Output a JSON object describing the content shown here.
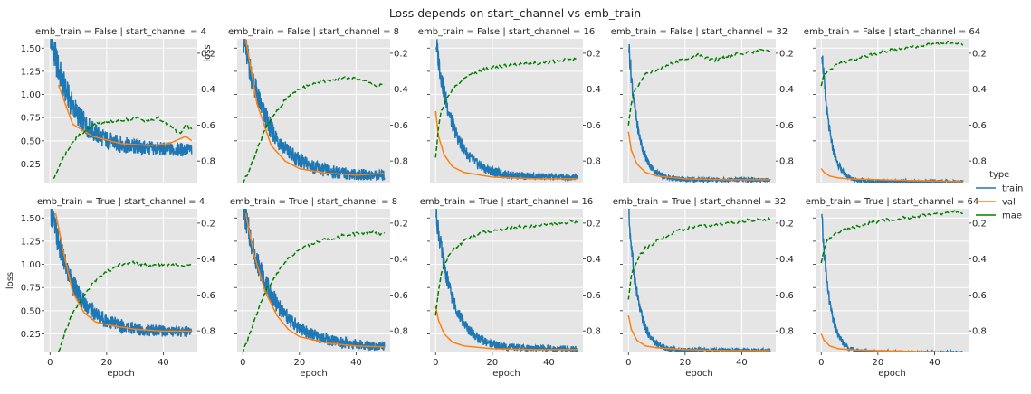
{
  "colors": {
    "background": "#e5e5e5",
    "grid": "#ffffff",
    "train": "#1f77b4",
    "val": "#ff7f0e",
    "mae": "#008000"
  },
  "chart_data": {
    "type": "line",
    "title": "Loss depends on start_channel vs emb_train",
    "xlabel": "epoch",
    "ylabel": "loss",
    "xlim": [
      -2,
      52
    ],
    "ylim": [
      0.05,
      1.6
    ],
    "secondary_ylim": [
      0.12,
      0.92
    ],
    "secondary_inverted": true,
    "xticks": [
      0,
      20,
      40
    ],
    "yticks": [
      0.25,
      0.5,
      0.75,
      1.0,
      1.25,
      1.5
    ],
    "yticklabels": [
      "0.25",
      "0.50",
      "0.75",
      "1.00",
      "1.25",
      "1.50"
    ],
    "secondary_yticks": [
      0.2,
      0.4,
      0.6,
      0.8
    ],
    "secondary_yticklabels": [
      "0.2",
      "0.4",
      "0.6",
      "0.8"
    ],
    "secondary_ylabel_top_left": "loss",
    "grid": true,
    "legend": {
      "title": "type",
      "placement": "right",
      "entries": [
        {
          "key": "train",
          "label": "train"
        },
        {
          "key": "val",
          "label": "val"
        },
        {
          "key": "mae",
          "label": "mae"
        }
      ]
    },
    "panels": [
      {
        "title": "emb_train = False | start_channel = 4",
        "train": {
          "start": 1.65,
          "end": 0.4,
          "rate": 0.12,
          "noise": 0.1
        },
        "val": {
          "start": 1.6,
          "end": 0.45,
          "rate": 0.14
        },
        "val_points": [
          [
            3,
            1.1
          ],
          [
            8,
            0.68
          ],
          [
            15,
            0.55
          ],
          [
            25,
            0.47
          ],
          [
            35,
            0.45
          ],
          [
            42,
            0.47
          ],
          [
            48,
            0.55
          ],
          [
            50,
            0.5
          ]
        ],
        "mae_points": [
          [
            1,
            0.9
          ],
          [
            3,
            0.84
          ],
          [
            6,
            0.74
          ],
          [
            10,
            0.66
          ],
          [
            15,
            0.6
          ],
          [
            20,
            0.58
          ],
          [
            25,
            0.58
          ],
          [
            30,
            0.56
          ],
          [
            35,
            0.58
          ],
          [
            38,
            0.56
          ],
          [
            42,
            0.6
          ],
          [
            46,
            0.65
          ],
          [
            48,
            0.6
          ],
          [
            50,
            0.62
          ]
        ]
      },
      {
        "title": "emb_train = False | start_channel = 8",
        "train": {
          "start": 1.65,
          "end": 0.12,
          "rate": 0.11,
          "noise": 0.08
        },
        "val_points": [
          [
            1,
            1.6
          ],
          [
            5,
            0.9
          ],
          [
            10,
            0.45
          ],
          [
            15,
            0.28
          ],
          [
            20,
            0.2
          ],
          [
            30,
            0.15
          ],
          [
            40,
            0.13
          ],
          [
            50,
            0.15
          ]
        ],
        "mae_points": [
          [
            0,
            0.92
          ],
          [
            2,
            0.86
          ],
          [
            5,
            0.74
          ],
          [
            8,
            0.62
          ],
          [
            12,
            0.52
          ],
          [
            16,
            0.44
          ],
          [
            20,
            0.4
          ],
          [
            25,
            0.37
          ],
          [
            30,
            0.35
          ],
          [
            35,
            0.34
          ],
          [
            40,
            0.34
          ],
          [
            45,
            0.36
          ],
          [
            47,
            0.39
          ],
          [
            50,
            0.37
          ]
        ]
      },
      {
        "title": "emb_train = False | start_channel = 16",
        "train": {
          "start": 1.6,
          "end": 0.11,
          "rate": 0.16,
          "noise": 0.05
        },
        "val_points": [
          [
            0,
            0.82
          ],
          [
            1,
            0.55
          ],
          [
            3,
            0.35
          ],
          [
            6,
            0.22
          ],
          [
            10,
            0.16
          ],
          [
            20,
            0.11
          ],
          [
            35,
            0.09
          ],
          [
            50,
            0.09
          ]
        ],
        "mae_points": [
          [
            0,
            0.78
          ],
          [
            1,
            0.62
          ],
          [
            2,
            0.52
          ],
          [
            4,
            0.45
          ],
          [
            6,
            0.4
          ],
          [
            10,
            0.34
          ],
          [
            15,
            0.3
          ],
          [
            20,
            0.28
          ],
          [
            30,
            0.26
          ],
          [
            40,
            0.25
          ],
          [
            45,
            0.24
          ],
          [
            48,
            0.23
          ],
          [
            50,
            0.24
          ]
        ]
      },
      {
        "title": "emb_train = False | start_channel = 32",
        "train": {
          "start": 1.6,
          "end": 0.08,
          "rate": 0.3,
          "noise": 0.03
        },
        "val_points": [
          [
            0,
            0.6
          ],
          [
            1,
            0.4
          ],
          [
            3,
            0.25
          ],
          [
            6,
            0.16
          ],
          [
            10,
            0.12
          ],
          [
            20,
            0.09
          ],
          [
            35,
            0.08
          ],
          [
            50,
            0.08
          ]
        ],
        "mae_points": [
          [
            0,
            0.6
          ],
          [
            1,
            0.48
          ],
          [
            2,
            0.42
          ],
          [
            4,
            0.36
          ],
          [
            6,
            0.32
          ],
          [
            10,
            0.29
          ],
          [
            15,
            0.26
          ],
          [
            20,
            0.23
          ],
          [
            25,
            0.21
          ],
          [
            30,
            0.24
          ],
          [
            35,
            0.22
          ],
          [
            40,
            0.2
          ],
          [
            45,
            0.19
          ],
          [
            48,
            0.18
          ],
          [
            50,
            0.19
          ]
        ]
      },
      {
        "title": "emb_train = False | start_channel = 64",
        "train": {
          "start": 1.6,
          "end": 0.06,
          "rate": 0.35,
          "noise": 0.025
        },
        "val_points": [
          [
            0,
            0.2
          ],
          [
            1,
            0.16
          ],
          [
            3,
            0.12
          ],
          [
            6,
            0.1
          ],
          [
            10,
            0.09
          ],
          [
            20,
            0.08
          ],
          [
            35,
            0.07
          ],
          [
            50,
            0.06
          ]
        ],
        "mae_points": [
          [
            0,
            0.38
          ],
          [
            1,
            0.32
          ],
          [
            2,
            0.3
          ],
          [
            4,
            0.28
          ],
          [
            6,
            0.26
          ],
          [
            10,
            0.24
          ],
          [
            15,
            0.22
          ],
          [
            20,
            0.2
          ],
          [
            25,
            0.18
          ],
          [
            30,
            0.17
          ],
          [
            35,
            0.16
          ],
          [
            40,
            0.15
          ],
          [
            45,
            0.14
          ],
          [
            50,
            0.15
          ]
        ]
      },
      {
        "title": "emb_train = True | start_channel = 4",
        "train": {
          "start": 1.65,
          "end": 0.27,
          "rate": 0.12,
          "noise": 0.08
        },
        "val_points": [
          [
            2,
            1.55
          ],
          [
            5,
            1.1
          ],
          [
            8,
            0.7
          ],
          [
            12,
            0.48
          ],
          [
            16,
            0.38
          ],
          [
            20,
            0.35
          ],
          [
            30,
            0.3
          ],
          [
            40,
            0.28
          ],
          [
            50,
            0.28
          ]
        ],
        "mae_points": [
          [
            3,
            0.92
          ],
          [
            5,
            0.82
          ],
          [
            8,
            0.7
          ],
          [
            12,
            0.6
          ],
          [
            16,
            0.52
          ],
          [
            20,
            0.47
          ],
          [
            25,
            0.43
          ],
          [
            30,
            0.42
          ],
          [
            35,
            0.44
          ],
          [
            40,
            0.43
          ],
          [
            45,
            0.43
          ],
          [
            48,
            0.44
          ],
          [
            50,
            0.43
          ]
        ]
      },
      {
        "title": "emb_train = True | start_channel = 8",
        "train": {
          "start": 1.65,
          "end": 0.11,
          "rate": 0.1,
          "noise": 0.07
        },
        "val_points": [
          [
            1,
            1.55
          ],
          [
            4,
            1.1
          ],
          [
            8,
            0.7
          ],
          [
            12,
            0.45
          ],
          [
            16,
            0.3
          ],
          [
            20,
            0.22
          ],
          [
            30,
            0.15
          ],
          [
            40,
            0.12
          ],
          [
            50,
            0.11
          ]
        ],
        "mae_points": [
          [
            0,
            0.92
          ],
          [
            2,
            0.84
          ],
          [
            5,
            0.7
          ],
          [
            8,
            0.58
          ],
          [
            12,
            0.48
          ],
          [
            16,
            0.4
          ],
          [
            20,
            0.35
          ],
          [
            25,
            0.31
          ],
          [
            30,
            0.29
          ],
          [
            35,
            0.27
          ],
          [
            40,
            0.26
          ],
          [
            45,
            0.25
          ],
          [
            48,
            0.26
          ],
          [
            50,
            0.26
          ]
        ]
      },
      {
        "title": "emb_train = True | start_channel = 16",
        "train": {
          "start": 1.6,
          "end": 0.09,
          "rate": 0.17,
          "noise": 0.045
        },
        "val_points": [
          [
            0,
            0.55
          ],
          [
            1,
            0.4
          ],
          [
            3,
            0.25
          ],
          [
            6,
            0.16
          ],
          [
            10,
            0.12
          ],
          [
            20,
            0.09
          ],
          [
            35,
            0.08
          ],
          [
            50,
            0.08
          ]
        ],
        "mae_points": [
          [
            0,
            0.72
          ],
          [
            1,
            0.58
          ],
          [
            2,
            0.48
          ],
          [
            4,
            0.4
          ],
          [
            6,
            0.35
          ],
          [
            10,
            0.3
          ],
          [
            15,
            0.26
          ],
          [
            20,
            0.24
          ],
          [
            30,
            0.22
          ],
          [
            40,
            0.21
          ],
          [
            45,
            0.2
          ],
          [
            48,
            0.19
          ],
          [
            50,
            0.2
          ]
        ]
      },
      {
        "title": "emb_train = True | start_channel = 32",
        "train": {
          "start": 1.6,
          "end": 0.07,
          "rate": 0.3,
          "noise": 0.03
        },
        "val_points": [
          [
            0,
            0.45
          ],
          [
            1,
            0.3
          ],
          [
            3,
            0.18
          ],
          [
            6,
            0.12
          ],
          [
            10,
            0.1
          ],
          [
            20,
            0.08
          ],
          [
            35,
            0.07
          ],
          [
            50,
            0.07
          ]
        ],
        "mae_points": [
          [
            0,
            0.62
          ],
          [
            1,
            0.5
          ],
          [
            2,
            0.44
          ],
          [
            4,
            0.38
          ],
          [
            6,
            0.34
          ],
          [
            10,
            0.3
          ],
          [
            15,
            0.26
          ],
          [
            20,
            0.23
          ],
          [
            25,
            0.22
          ],
          [
            30,
            0.21
          ],
          [
            35,
            0.2
          ],
          [
            40,
            0.19
          ],
          [
            45,
            0.18
          ],
          [
            50,
            0.18
          ]
        ]
      },
      {
        "title": "emb_train = True | start_channel = 64",
        "train": {
          "start": 1.6,
          "end": 0.05,
          "rate": 0.35,
          "noise": 0.025
        },
        "val_points": [
          [
            0,
            0.25
          ],
          [
            1,
            0.18
          ],
          [
            3,
            0.12
          ],
          [
            6,
            0.09
          ],
          [
            10,
            0.08
          ],
          [
            20,
            0.07
          ],
          [
            35,
            0.06
          ],
          [
            50,
            0.05
          ]
        ],
        "mae_points": [
          [
            0,
            0.42
          ],
          [
            1,
            0.34
          ],
          [
            2,
            0.3
          ],
          [
            4,
            0.27
          ],
          [
            6,
            0.25
          ],
          [
            10,
            0.23
          ],
          [
            15,
            0.21
          ],
          [
            20,
            0.19
          ],
          [
            25,
            0.18
          ],
          [
            30,
            0.17
          ],
          [
            35,
            0.16
          ],
          [
            40,
            0.15
          ],
          [
            45,
            0.14
          ],
          [
            50,
            0.14
          ]
        ]
      }
    ]
  }
}
